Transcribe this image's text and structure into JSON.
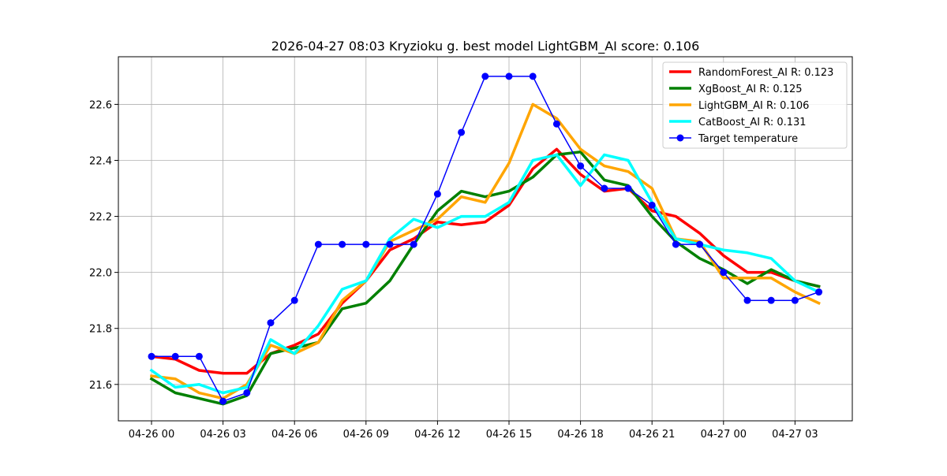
{
  "chart_data": {
    "type": "line",
    "title": "2026-04-27 08:03 Kryzioku g. best model LightGBM_AI score: 0.106",
    "xlabel": "",
    "ylabel": "",
    "ylim": [
      21.47,
      22.77
    ],
    "x_ticks": [
      "04-26 00",
      "04-26 03",
      "04-26 06",
      "04-26 09",
      "04-26 12",
      "04-26 15",
      "04-26 18",
      "04-26 21",
      "04-27 00",
      "04-27 03"
    ],
    "y_ticks": [
      "21.6",
      "21.8",
      "22.0",
      "22.2",
      "22.4",
      "22.6"
    ],
    "grid": true,
    "legend_position": "top-right",
    "x_hours": [
      0,
      1,
      2,
      3,
      4,
      5,
      6,
      7,
      8,
      9,
      10,
      11,
      12,
      13,
      14,
      15,
      16,
      17,
      18,
      19,
      20,
      21,
      22,
      23,
      24,
      25,
      26,
      27,
      28
    ],
    "series": [
      {
        "name": "RandomForest_AI R: 0.123",
        "color": "#ff0000",
        "marker": false,
        "values": [
          21.7,
          21.69,
          21.65,
          21.64,
          21.64,
          21.71,
          21.74,
          21.78,
          21.89,
          21.97,
          22.08,
          22.12,
          22.18,
          22.17,
          22.18,
          22.24,
          22.37,
          22.44,
          22.35,
          22.29,
          22.3,
          22.22,
          22.2,
          22.14,
          22.06,
          22.0,
          22.0,
          21.97,
          21.95
        ]
      },
      {
        "name": "XgBoost_AI R: 0.125",
        "color": "#008000",
        "marker": false,
        "values": [
          21.62,
          21.57,
          21.55,
          21.53,
          21.56,
          21.71,
          21.73,
          21.75,
          21.87,
          21.89,
          21.97,
          22.1,
          22.22,
          22.29,
          22.27,
          22.29,
          22.34,
          22.42,
          22.43,
          22.33,
          22.31,
          22.2,
          22.11,
          22.05,
          22.01,
          21.96,
          22.01,
          21.97,
          21.95
        ]
      },
      {
        "name": "LightGBM_AI R: 0.106",
        "color": "#ffa500",
        "marker": false,
        "values": [
          21.63,
          21.62,
          21.57,
          21.55,
          21.6,
          21.74,
          21.71,
          21.75,
          21.9,
          21.97,
          22.11,
          22.15,
          22.19,
          22.27,
          22.25,
          22.39,
          22.6,
          22.55,
          22.44,
          22.38,
          22.36,
          22.3,
          22.12,
          22.11,
          21.98,
          21.98,
          21.98,
          21.93,
          21.89
        ]
      },
      {
        "name": "CatBoost_AI R: 0.131",
        "color": "#00ffff",
        "marker": false,
        "values": [
          21.65,
          21.59,
          21.6,
          21.57,
          21.59,
          21.76,
          21.71,
          21.81,
          21.94,
          21.97,
          22.12,
          22.19,
          22.16,
          22.2,
          22.2,
          22.25,
          22.4,
          22.42,
          22.31,
          22.42,
          22.4,
          22.25,
          22.12,
          22.1,
          22.08,
          22.07,
          22.05,
          21.97,
          21.93
        ]
      },
      {
        "name": "Target temperature",
        "color": "#0000ff",
        "marker": true,
        "values": [
          21.7,
          21.7,
          21.7,
          21.54,
          21.57,
          21.82,
          21.9,
          22.1,
          22.1,
          22.1,
          22.1,
          22.1,
          22.28,
          22.5,
          22.7,
          22.7,
          22.7,
          22.53,
          22.38,
          22.3,
          22.3,
          22.24,
          22.1,
          22.1,
          22.0,
          21.9,
          21.9,
          21.9,
          21.93
        ]
      }
    ]
  }
}
